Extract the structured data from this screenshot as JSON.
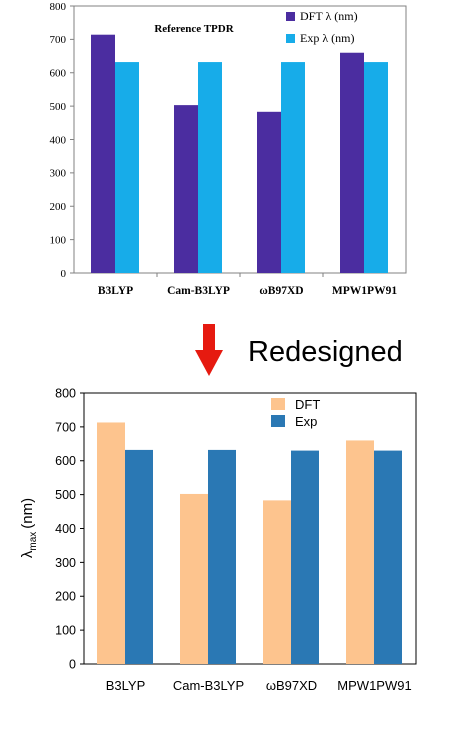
{
  "colors": {
    "top_dft": "#4B2DA0",
    "top_exp": "#17ACE9",
    "bottom_dft": "#FDC48E",
    "bottom_exp": "#2A78B4",
    "arrow": "#E61A10",
    "axis": "#000000"
  },
  "arrow_label": "Redesigned",
  "chart_data": [
    {
      "type": "bar",
      "title": "Reference  TPDR",
      "xlabel": "",
      "ylabel": "",
      "categories": [
        "B3LYP",
        "Cam-B3LYP",
        "ωB97XD",
        "MPW1PW91"
      ],
      "series": [
        {
          "name": "DFT λ (nm)",
          "values": [
            714,
            503,
            483,
            660
          ]
        },
        {
          "name": "Exp λ (nm)",
          "values": [
            632,
            632,
            632,
            632
          ]
        }
      ],
      "ylim": [
        0,
        800
      ],
      "yticks": [
        0,
        100,
        200,
        300,
        400,
        500,
        600,
        700,
        800
      ],
      "grid": false,
      "legend_position": "top-right"
    },
    {
      "type": "bar",
      "title": "",
      "xlabel": "",
      "ylabel": "λmax (nm)",
      "ylabel_main": "λ",
      "ylabel_sub": "max",
      "ylabel_unit": "(nm)",
      "categories": [
        "B3LYP",
        "Cam-B3LYP",
        "ωB97XD",
        "MPW1PW91"
      ],
      "series": [
        {
          "name": "DFT",
          "values": [
            713,
            502,
            483,
            660
          ]
        },
        {
          "name": "Exp",
          "values": [
            632,
            632,
            630,
            630
          ]
        }
      ],
      "ylim": [
        0,
        800
      ],
      "yticks": [
        0,
        100,
        200,
        300,
        400,
        500,
        600,
        700,
        800
      ],
      "grid": false,
      "legend_position": "top-center"
    }
  ]
}
